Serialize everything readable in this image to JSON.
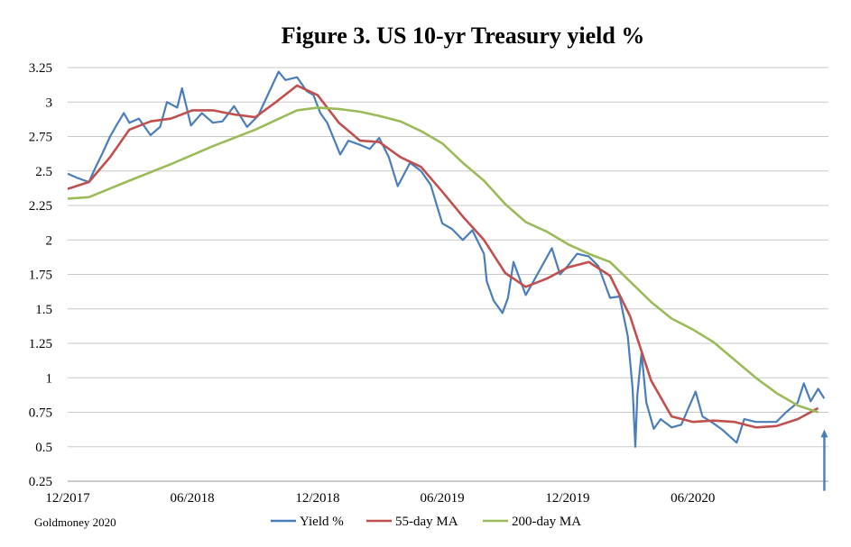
{
  "chart_data": {
    "type": "line",
    "title": "Figure 3. US 10-yr Treasury yield %",
    "source": "Goldmoney 2020",
    "xlabel": "",
    "ylabel": "",
    "x_range": [
      "2017-12",
      "2020-12"
    ],
    "x_ticks": [
      "12/2017",
      "06/2018",
      "12/2018",
      "06/2019",
      "12/2019",
      "06/2020"
    ],
    "ylim": [
      0.25,
      3.25
    ],
    "y_ticks": [
      "3.25",
      "3",
      "2.75",
      "2.5",
      "2.25",
      "2",
      "1.75",
      "1.5",
      "1.25",
      "1",
      "0.75",
      "0.5",
      "0.25"
    ],
    "grid": "horizontal",
    "legend_position": "bottom",
    "series": [
      {
        "name": "Yield %",
        "color": "#4a7ebb",
        "points": [
          [
            "2017-12-01",
            2.48
          ],
          [
            "2017-12-15",
            2.45
          ],
          [
            "2018-01-01",
            2.42
          ],
          [
            "2018-01-10",
            2.52
          ],
          [
            "2018-01-20",
            2.62
          ],
          [
            "2018-02-01",
            2.75
          ],
          [
            "2018-02-10",
            2.83
          ],
          [
            "2018-02-21",
            2.92
          ],
          [
            "2018-03-01",
            2.85
          ],
          [
            "2018-03-15",
            2.88
          ],
          [
            "2018-04-01",
            2.76
          ],
          [
            "2018-04-15",
            2.82
          ],
          [
            "2018-04-25",
            3.0
          ],
          [
            "2018-05-10",
            2.96
          ],
          [
            "2018-05-17",
            3.1
          ],
          [
            "2018-05-30",
            2.83
          ],
          [
            "2018-06-15",
            2.92
          ],
          [
            "2018-07-01",
            2.85
          ],
          [
            "2018-07-15",
            2.86
          ],
          [
            "2018-08-01",
            2.97
          ],
          [
            "2018-08-20",
            2.82
          ],
          [
            "2018-09-05",
            2.9
          ],
          [
            "2018-09-20",
            3.06
          ],
          [
            "2018-10-05",
            3.22
          ],
          [
            "2018-10-15",
            3.16
          ],
          [
            "2018-11-01",
            3.18
          ],
          [
            "2018-11-15",
            3.08
          ],
          [
            "2018-11-25",
            3.05
          ],
          [
            "2018-12-05",
            2.92
          ],
          [
            "2018-12-15",
            2.85
          ],
          [
            "2019-01-03",
            2.62
          ],
          [
            "2019-01-15",
            2.72
          ],
          [
            "2019-02-01",
            2.69
          ],
          [
            "2019-02-15",
            2.66
          ],
          [
            "2019-03-01",
            2.74
          ],
          [
            "2019-03-15",
            2.6
          ],
          [
            "2019-03-28",
            2.39
          ],
          [
            "2019-04-15",
            2.56
          ],
          [
            "2019-05-01",
            2.5
          ],
          [
            "2019-05-15",
            2.4
          ],
          [
            "2019-06-01",
            2.12
          ],
          [
            "2019-06-15",
            2.08
          ],
          [
            "2019-07-01",
            2.0
          ],
          [
            "2019-07-15",
            2.07
          ],
          [
            "2019-08-01",
            1.9
          ],
          [
            "2019-08-05",
            1.7
          ],
          [
            "2019-08-15",
            1.56
          ],
          [
            "2019-08-28",
            1.47
          ],
          [
            "2019-09-05",
            1.58
          ],
          [
            "2019-09-13",
            1.84
          ],
          [
            "2019-10-01",
            1.6
          ],
          [
            "2019-10-10",
            1.68
          ],
          [
            "2019-11-08",
            1.94
          ],
          [
            "2019-11-20",
            1.75
          ],
          [
            "2019-12-01",
            1.81
          ],
          [
            "2019-12-15",
            1.9
          ],
          [
            "2020-01-01",
            1.88
          ],
          [
            "2020-01-15",
            1.81
          ],
          [
            "2020-02-01",
            1.58
          ],
          [
            "2020-02-15",
            1.59
          ],
          [
            "2020-02-27",
            1.3
          ],
          [
            "2020-03-05",
            0.92
          ],
          [
            "2020-03-09",
            0.5
          ],
          [
            "2020-03-12",
            0.88
          ],
          [
            "2020-03-18",
            1.18
          ],
          [
            "2020-03-25",
            0.82
          ],
          [
            "2020-04-05",
            0.63
          ],
          [
            "2020-04-15",
            0.7
          ],
          [
            "2020-05-01",
            0.64
          ],
          [
            "2020-05-15",
            0.66
          ],
          [
            "2020-06-05",
            0.9
          ],
          [
            "2020-06-15",
            0.72
          ],
          [
            "2020-07-01",
            0.67
          ],
          [
            "2020-07-15",
            0.62
          ],
          [
            "2020-08-04",
            0.53
          ],
          [
            "2020-08-15",
            0.7
          ],
          [
            "2020-09-01",
            0.68
          ],
          [
            "2020-09-15",
            0.68
          ],
          [
            "2020-10-01",
            0.68
          ],
          [
            "2020-10-15",
            0.75
          ],
          [
            "2020-11-01",
            0.82
          ],
          [
            "2020-11-10",
            0.96
          ],
          [
            "2020-11-20",
            0.83
          ],
          [
            "2020-12-01",
            0.92
          ],
          [
            "2020-12-10",
            0.85
          ]
        ]
      },
      {
        "name": "55-day MA",
        "color": "#c0504d",
        "points": [
          [
            "2017-12-01",
            2.37
          ],
          [
            "2018-01-01",
            2.42
          ],
          [
            "2018-02-01",
            2.6
          ],
          [
            "2018-03-01",
            2.8
          ],
          [
            "2018-04-01",
            2.86
          ],
          [
            "2018-05-01",
            2.88
          ],
          [
            "2018-06-01",
            2.94
          ],
          [
            "2018-07-01",
            2.94
          ],
          [
            "2018-08-01",
            2.91
          ],
          [
            "2018-09-01",
            2.89
          ],
          [
            "2018-10-01",
            3.0
          ],
          [
            "2018-11-01",
            3.12
          ],
          [
            "2018-12-01",
            3.05
          ],
          [
            "2019-01-01",
            2.85
          ],
          [
            "2019-02-01",
            2.72
          ],
          [
            "2019-03-01",
            2.71
          ],
          [
            "2019-04-01",
            2.6
          ],
          [
            "2019-05-01",
            2.53
          ],
          [
            "2019-06-01",
            2.35
          ],
          [
            "2019-07-01",
            2.17
          ],
          [
            "2019-08-01",
            2.0
          ],
          [
            "2019-09-01",
            1.76
          ],
          [
            "2019-10-01",
            1.66
          ],
          [
            "2019-11-01",
            1.72
          ],
          [
            "2019-12-01",
            1.8
          ],
          [
            "2020-01-01",
            1.84
          ],
          [
            "2020-02-01",
            1.74
          ],
          [
            "2020-03-01",
            1.45
          ],
          [
            "2020-04-01",
            0.98
          ],
          [
            "2020-05-01",
            0.72
          ],
          [
            "2020-06-01",
            0.68
          ],
          [
            "2020-07-01",
            0.69
          ],
          [
            "2020-08-01",
            0.68
          ],
          [
            "2020-09-01",
            0.64
          ],
          [
            "2020-10-01",
            0.65
          ],
          [
            "2020-11-01",
            0.7
          ],
          [
            "2020-12-01",
            0.78
          ]
        ]
      },
      {
        "name": "200-day MA",
        "color": "#9bbb59",
        "points": [
          [
            "2017-12-01",
            2.3
          ],
          [
            "2018-01-01",
            2.31
          ],
          [
            "2018-03-01",
            2.43
          ],
          [
            "2018-05-01",
            2.55
          ],
          [
            "2018-07-01",
            2.68
          ],
          [
            "2018-09-01",
            2.8
          ],
          [
            "2018-11-01",
            2.94
          ],
          [
            "2018-12-01",
            2.96
          ],
          [
            "2019-01-01",
            2.95
          ],
          [
            "2019-02-01",
            2.93
          ],
          [
            "2019-03-01",
            2.9
          ],
          [
            "2019-04-01",
            2.86
          ],
          [
            "2019-05-01",
            2.79
          ],
          [
            "2019-06-01",
            2.7
          ],
          [
            "2019-07-01",
            2.56
          ],
          [
            "2019-08-01",
            2.43
          ],
          [
            "2019-09-01",
            2.26
          ],
          [
            "2019-10-01",
            2.13
          ],
          [
            "2019-11-01",
            2.06
          ],
          [
            "2019-12-01",
            1.97
          ],
          [
            "2020-01-01",
            1.9
          ],
          [
            "2020-02-01",
            1.84
          ],
          [
            "2020-03-01",
            1.7
          ],
          [
            "2020-04-01",
            1.55
          ],
          [
            "2020-05-01",
            1.43
          ],
          [
            "2020-06-01",
            1.35
          ],
          [
            "2020-07-01",
            1.26
          ],
          [
            "2020-08-01",
            1.13
          ],
          [
            "2020-09-01",
            1.0
          ],
          [
            "2020-10-01",
            0.89
          ],
          [
            "2020-11-01",
            0.8
          ],
          [
            "2020-12-01",
            0.75
          ]
        ]
      }
    ],
    "annotation": {
      "type": "arrow",
      "color": "#4a7ebb",
      "at": "2020-12-10",
      "from_value": 0.18,
      "to_value": 0.62
    }
  }
}
